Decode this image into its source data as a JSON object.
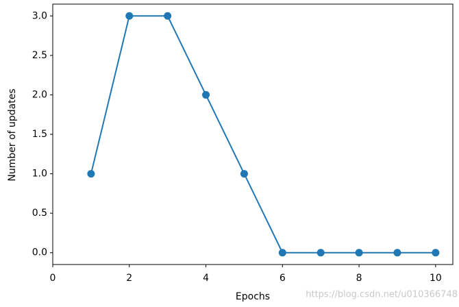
{
  "chart_data": {
    "type": "line",
    "x": [
      1,
      2,
      3,
      4,
      5,
      6,
      7,
      8,
      9,
      10
    ],
    "series": [
      {
        "color": "#1f77b4",
        "values": [
          1,
          3,
          3,
          2,
          1,
          0,
          0,
          0,
          0,
          0
        ]
      }
    ],
    "xlim": [
      0,
      10.45
    ],
    "ylim": [
      -0.15,
      3.15
    ],
    "xticks": [
      0,
      2,
      4,
      6,
      8,
      10
    ],
    "yticks": [
      {
        "value": 0,
        "label": "0.0"
      },
      {
        "value": 0.5,
        "label": "0.5"
      },
      {
        "value": 1,
        "label": "1.0"
      },
      {
        "value": 1.5,
        "label": "1.5"
      },
      {
        "value": 2,
        "label": "2.0"
      },
      {
        "value": 2.5,
        "label": "2.5"
      },
      {
        "value": 3,
        "label": "3.0"
      }
    ],
    "x_label": "Epochs",
    "y_label": "Number of updates",
    "watermark": "https://blog.csdn.net/u010366748"
  }
}
